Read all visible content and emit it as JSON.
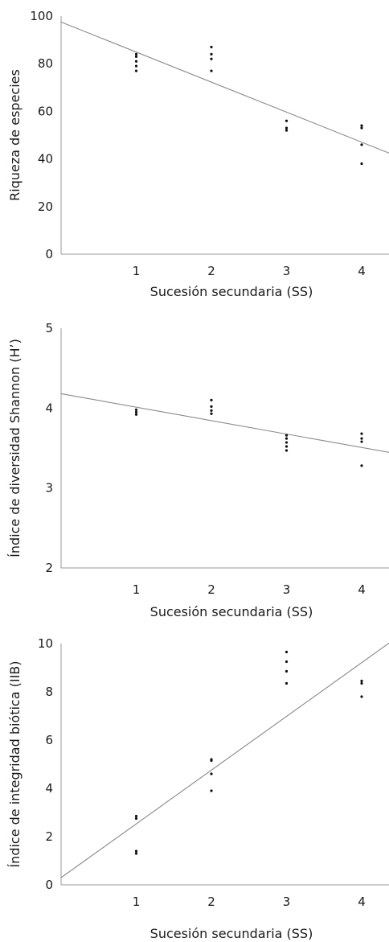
{
  "chart_data": [
    {
      "type": "scatter",
      "title": "",
      "xlabel": "Sucesión secundaria (SS)",
      "ylabel": "Riqueza de especies",
      "xticks": [
        "1",
        "2",
        "3",
        "4"
      ],
      "yticks": [
        "0",
        "20",
        "40",
        "60",
        "80",
        "100"
      ],
      "xlim": [
        0,
        4.4
      ],
      "ylim": [
        0,
        100
      ],
      "grid": false,
      "points": [
        {
          "x": 1,
          "y": 77
        },
        {
          "x": 1,
          "y": 79
        },
        {
          "x": 1,
          "y": 81
        },
        {
          "x": 1,
          "y": 83
        },
        {
          "x": 1,
          "y": 84
        },
        {
          "x": 2,
          "y": 77
        },
        {
          "x": 2,
          "y": 82
        },
        {
          "x": 2,
          "y": 84
        },
        {
          "x": 2,
          "y": 87
        },
        {
          "x": 3,
          "y": 52
        },
        {
          "x": 3,
          "y": 53
        },
        {
          "x": 3,
          "y": 56
        },
        {
          "x": 4,
          "y": 38
        },
        {
          "x": 4,
          "y": 46
        },
        {
          "x": 4,
          "y": 53
        },
        {
          "x": 4,
          "y": 54
        }
      ],
      "trendline": {
        "x": [
          0,
          4.4
        ],
        "y": [
          97.5,
          42
        ]
      }
    },
    {
      "type": "scatter",
      "title": "",
      "xlabel": "Sucesión secundaria (SS)",
      "ylabel": "Índice de diversidad Shannon (H’)",
      "xticks": [
        "1",
        "2",
        "3",
        "4"
      ],
      "yticks": [
        "2",
        "3",
        "4",
        "5"
      ],
      "xlim": [
        0,
        4.4
      ],
      "ylim": [
        2,
        5
      ],
      "grid": false,
      "points": [
        {
          "x": 1,
          "y": 3.92
        },
        {
          "x": 1,
          "y": 3.95
        },
        {
          "x": 1,
          "y": 3.98
        },
        {
          "x": 2,
          "y": 3.93
        },
        {
          "x": 2,
          "y": 3.97
        },
        {
          "x": 2,
          "y": 4.02
        },
        {
          "x": 2,
          "y": 4.1
        },
        {
          "x": 3,
          "y": 3.47
        },
        {
          "x": 3,
          "y": 3.52
        },
        {
          "x": 3,
          "y": 3.57
        },
        {
          "x": 3,
          "y": 3.62
        },
        {
          "x": 3,
          "y": 3.66
        },
        {
          "x": 4,
          "y": 3.28
        },
        {
          "x": 4,
          "y": 3.58
        },
        {
          "x": 4,
          "y": 3.62
        },
        {
          "x": 4,
          "y": 3.68
        }
      ],
      "trendline": {
        "x": [
          0,
          4.4
        ],
        "y": [
          4.18,
          3.44
        ]
      }
    },
    {
      "type": "scatter",
      "title": "",
      "xlabel": "Sucesión secundaria (SS)",
      "ylabel": "Índice de integridad biótica (IIB)",
      "xticks": [
        "1",
        "2",
        "3",
        "4"
      ],
      "yticks": [
        "0",
        "2",
        "4",
        "6",
        "8",
        "10"
      ],
      "xlim": [
        0,
        4.4
      ],
      "ylim": [
        0,
        10
      ],
      "grid": false,
      "points": [
        {
          "x": 1,
          "y": 1.3
        },
        {
          "x": 1,
          "y": 1.4
        },
        {
          "x": 1,
          "y": 2.75
        },
        {
          "x": 1,
          "y": 2.85
        },
        {
          "x": 2,
          "y": 3.9
        },
        {
          "x": 2,
          "y": 4.6
        },
        {
          "x": 2,
          "y": 5.15
        },
        {
          "x": 2,
          "y": 5.2
        },
        {
          "x": 3,
          "y": 8.35
        },
        {
          "x": 3,
          "y": 8.85
        },
        {
          "x": 3,
          "y": 9.25
        },
        {
          "x": 3,
          "y": 9.65
        },
        {
          "x": 4,
          "y": 7.8
        },
        {
          "x": 4,
          "y": 8.35
        },
        {
          "x": 4,
          "y": 8.45
        }
      ],
      "trendline": {
        "x": [
          0,
          4.4
        ],
        "y": [
          0.3,
          10.1
        ]
      }
    }
  ]
}
